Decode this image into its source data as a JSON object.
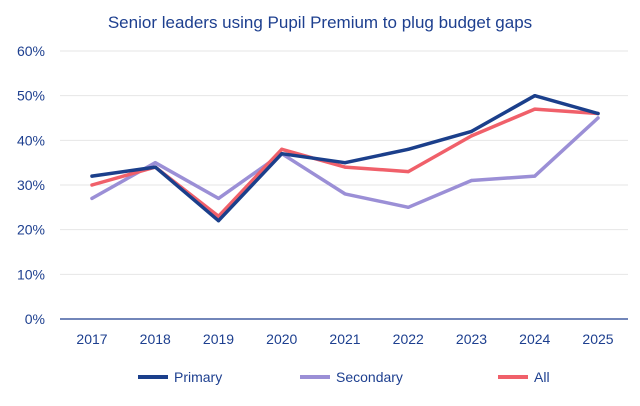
{
  "chart_data": {
    "type": "line",
    "title": "Senior leaders using Pupil Premium to plug budget gaps",
    "xlabel": "",
    "ylabel": "",
    "categories": [
      "2017",
      "2018",
      "2019",
      "2020",
      "2021",
      "2022",
      "2023",
      "2024",
      "2025"
    ],
    "ylim": [
      0,
      60
    ],
    "y_ticks": [
      "0%",
      "10%",
      "20%",
      "30%",
      "40%",
      "50%",
      "60%"
    ],
    "y_tick_values": [
      0,
      10,
      20,
      30,
      40,
      50,
      60
    ],
    "grid": true,
    "legend_position": "bottom",
    "series": [
      {
        "name": "Primary",
        "color": "#1b3f8b",
        "values": [
          32,
          34,
          22,
          37,
          35,
          38,
          42,
          50,
          46
        ]
      },
      {
        "name": "Secondary",
        "color": "#9b8fd6",
        "values": [
          27,
          35,
          27,
          37,
          28,
          25,
          31,
          32,
          45
        ]
      },
      {
        "name": "All",
        "color": "#f0606a",
        "values": [
          30,
          34,
          23,
          38,
          34,
          33,
          41,
          47,
          46
        ]
      }
    ]
  }
}
